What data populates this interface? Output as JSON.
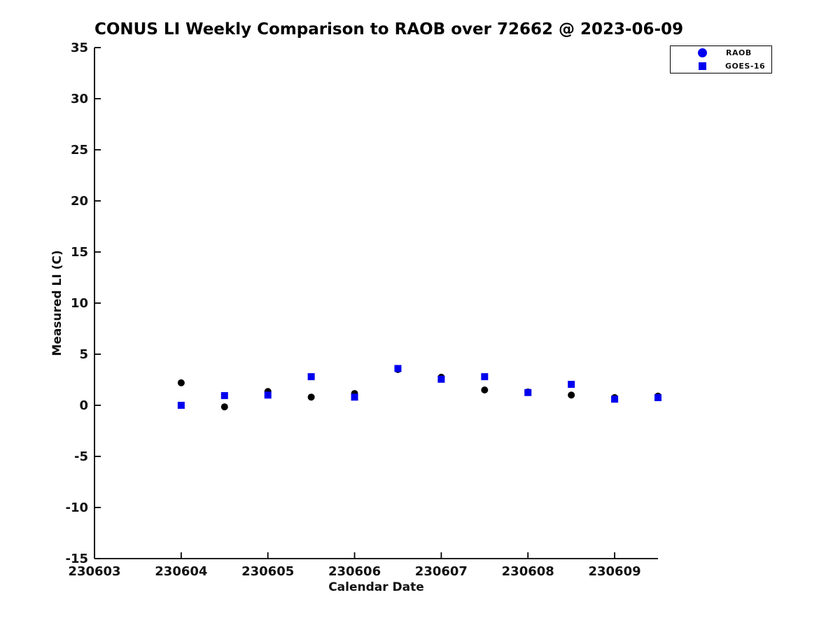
{
  "chart_data": {
    "type": "scatter",
    "title": "CONUS LI Weekly Comparison to RAOB over 72662 @ 2023-06-09",
    "xlabel": "Calendar Date",
    "ylabel": "Measured LI (C)",
    "x_tick_labels": [
      "230603",
      "230604",
      "230605",
      "230606",
      "230607",
      "230608",
      "230609"
    ],
    "x_tick_values": [
      0,
      1,
      2,
      3,
      4,
      5,
      6
    ],
    "xlim": [
      0,
      6.5
    ],
    "y_ticks": [
      35,
      30,
      25,
      20,
      15,
      10,
      5,
      0,
      -5,
      -10,
      -15
    ],
    "ylim": [
      -15,
      35
    ],
    "grid": false,
    "legend_position": "outside-top-right",
    "axis_color": "#000000",
    "series": [
      {
        "name": "RAOB",
        "marker": "circle",
        "color": "#000000",
        "legend_color": "#0000ee",
        "x_dates": [
          "230604",
          "230604.5",
          "230605",
          "230605.5",
          "230606",
          "230606.5",
          "230607",
          "230607.5",
          "230608",
          "230608.5",
          "230609",
          "230609.5"
        ],
        "x": [
          1,
          1.5,
          2,
          2.5,
          3,
          3.5,
          4,
          4.5,
          5,
          5.5,
          6,
          6.5
        ],
        "y": [
          2.2,
          -0.15,
          1.35,
          0.8,
          1.15,
          3.5,
          2.75,
          1.5,
          1.3,
          1.0,
          0.75,
          0.9
        ]
      },
      {
        "name": "GOES-16",
        "marker": "square",
        "color": "#0000ee",
        "legend_color": "#0000ee",
        "x_dates": [
          "230604",
          "230604.5",
          "230605",
          "230605.5",
          "230606",
          "230606.5",
          "230607",
          "230607.5",
          "230608",
          "230608.5",
          "230609",
          "230609.5"
        ],
        "x": [
          1,
          1.5,
          2,
          2.5,
          3,
          3.5,
          4,
          4.5,
          5,
          5.5,
          6,
          6.5
        ],
        "y": [
          0.0,
          0.95,
          1.0,
          2.8,
          0.8,
          3.6,
          2.55,
          2.8,
          1.25,
          2.05,
          0.6,
          0.75
        ]
      }
    ]
  }
}
